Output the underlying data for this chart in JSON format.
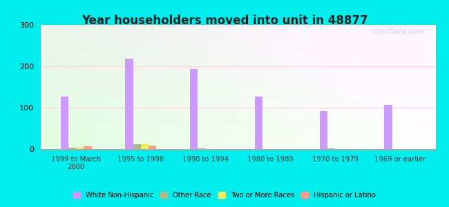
{
  "title": "Year householders moved into unit in 48877",
  "categories": [
    "1999 to March\n2000",
    "1995 to 1998",
    "1990 to 1994",
    "1980 to 1989",
    "1970 to 1979",
    "1969 or earlier"
  ],
  "series": {
    "White Non-Hispanic": [
      127,
      218,
      193,
      127,
      91,
      107
    ],
    "Other Race": [
      4,
      11,
      2,
      0,
      2,
      0
    ],
    "Two or More Races": [
      5,
      13,
      0,
      0,
      0,
      0
    ],
    "Hispanic or Latino": [
      7,
      9,
      0,
      0,
      0,
      0
    ]
  },
  "colors": {
    "White Non-Hispanic": "#cc99ff",
    "Other Race": "#aabb88",
    "Two or More Races": "#eeee66",
    "Hispanic or Latino": "#ff9988"
  },
  "bar_width": 0.12,
  "ylim": [
    0,
    300
  ],
  "yticks": [
    0,
    100,
    200,
    300
  ],
  "outer_bg": "#00eeee",
  "watermark": "City-Data.com",
  "legend_entries": [
    "White Non-Hispanic",
    "Other Race",
    "Two or More Races",
    "Hispanic or Latino"
  ]
}
